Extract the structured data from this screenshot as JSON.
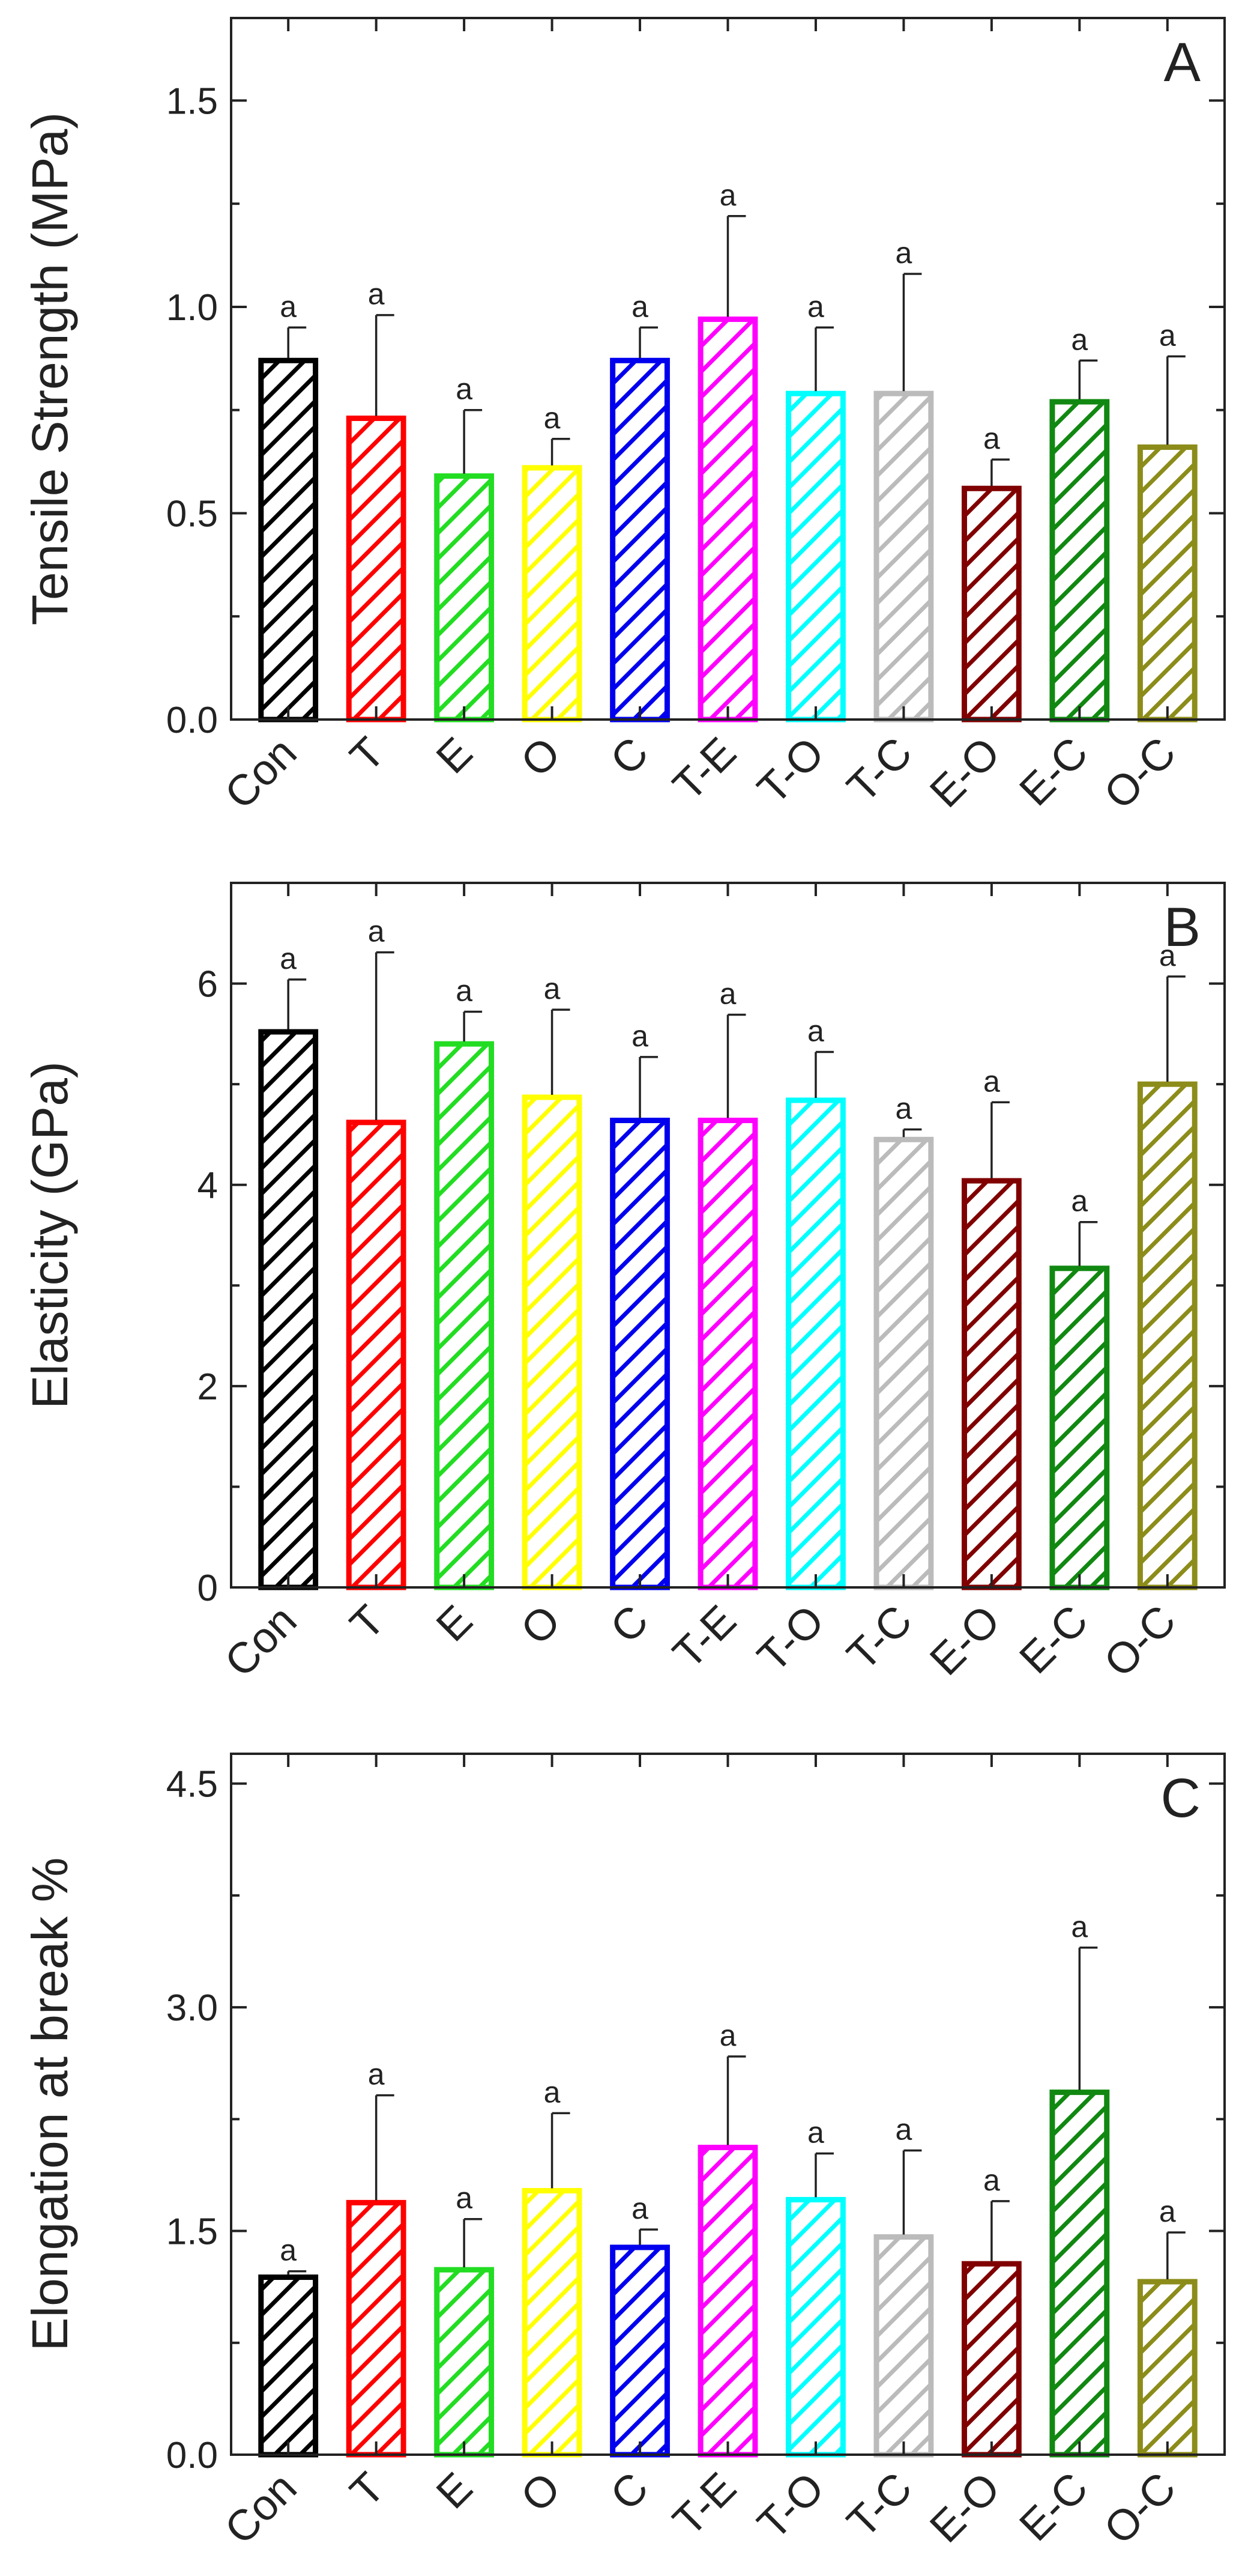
{
  "chart_data": [
    {
      "type": "bar",
      "panel_label": "A",
      "ylabel": "Tensile Strength (MPa)",
      "ylim": [
        0,
        1.7
      ],
      "yticks": [
        0.0,
        0.5,
        1.0,
        1.5
      ],
      "ytick_labels": [
        "0.0",
        "0.5",
        "1.0",
        "1.5"
      ],
      "categories": [
        "Con",
        "T",
        "E",
        "O",
        "C",
        "T-E",
        "T-O",
        "T-C",
        "E-O",
        "E-C",
        "O-C"
      ],
      "values": [
        0.87,
        0.73,
        0.59,
        0.61,
        0.87,
        0.97,
        0.79,
        0.79,
        0.56,
        0.77,
        0.66
      ],
      "errors": [
        0.08,
        0.25,
        0.16,
        0.07,
        0.08,
        0.25,
        0.16,
        0.29,
        0.07,
        0.1,
        0.22
      ],
      "labels": [
        "a",
        "a",
        "a",
        "a",
        "a",
        "a",
        "a",
        "a",
        "a",
        "a",
        "a"
      ],
      "grid": false
    },
    {
      "type": "bar",
      "panel_label": "B",
      "ylabel": "Elasticity (GPa)",
      "ylim": [
        0,
        7.0
      ],
      "yticks": [
        0,
        2,
        4,
        6
      ],
      "ytick_labels": [
        "0",
        "2",
        "4",
        "6"
      ],
      "categories": [
        "Con",
        "T",
        "E",
        "O",
        "C",
        "T-E",
        "T-O",
        "T-C",
        "E-O",
        "E-C",
        "O-C"
      ],
      "values": [
        5.52,
        4.62,
        5.4,
        4.87,
        4.64,
        4.64,
        4.84,
        4.45,
        4.04,
        3.17,
        5.0
      ],
      "errors": [
        0.52,
        1.69,
        0.32,
        0.87,
        0.63,
        1.05,
        0.48,
        0.1,
        0.78,
        0.46,
        1.07
      ],
      "labels": [
        "a",
        "a",
        "a",
        "a",
        "a",
        "a",
        "a",
        "a",
        "a",
        "a",
        "a"
      ],
      "grid": false
    },
    {
      "type": "bar",
      "panel_label": "C",
      "ylabel": "Elongation at break %",
      "ylim": [
        0,
        4.7
      ],
      "yticks": [
        0.0,
        1.5,
        3.0,
        4.5
      ],
      "ytick_labels": [
        "0.0",
        "1.5",
        "3.0",
        "4.5"
      ],
      "categories": [
        "Con",
        "T",
        "E",
        "O",
        "C",
        "T-E",
        "T-O",
        "T-C",
        "E-O",
        "E-C",
        "O-C"
      ],
      "values": [
        1.19,
        1.69,
        1.24,
        1.77,
        1.39,
        2.06,
        1.71,
        1.46,
        1.28,
        2.43,
        1.16
      ],
      "errors": [
        0.04,
        0.72,
        0.34,
        0.52,
        0.12,
        0.61,
        0.31,
        0.58,
        0.42,
        0.97,
        0.33
      ],
      "labels": [
        "a",
        "a",
        "a",
        "a",
        "a",
        "a",
        "a",
        "a",
        "a",
        "a",
        "a"
      ],
      "grid": false
    }
  ],
  "colors": {
    "series": [
      "#000000",
      "#ff0000",
      "#22dd22",
      "#ffff00",
      "#0000ee",
      "#ff00ff",
      "#00ffff",
      "#bbbbbb",
      "#800000",
      "#118811",
      "#8c8c1a"
    ],
    "axis": "#222222",
    "text": "#222222",
    "background": "#ffffff"
  }
}
